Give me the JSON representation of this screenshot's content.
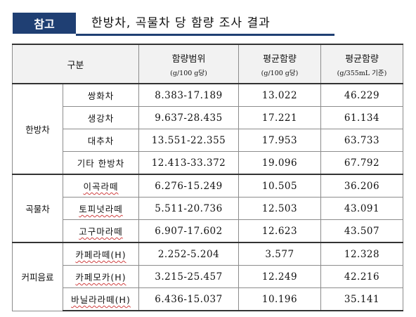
{
  "header": {
    "badge": "참고",
    "title": "한방차, 곡물차 당 함량 조사 결과"
  },
  "table": {
    "columns": [
      {
        "label": "구분",
        "unit": ""
      },
      {
        "label": "함량범위",
        "unit": "(g/100 g당)"
      },
      {
        "label": "평균함량",
        "unit": "(g/100 g당)"
      },
      {
        "label": "평균함량",
        "unit": "(g/355mL 기준)"
      }
    ],
    "groups": [
      {
        "name": "한방차",
        "rows": [
          {
            "item": "쌍화차",
            "range": "8.383-17.189",
            "avg100": "13.022",
            "avg355": "46.229"
          },
          {
            "item": "생강차",
            "range": "9.637-28.435",
            "avg100": "17.221",
            "avg355": "61.134"
          },
          {
            "item": "대추차",
            "range": "13.551-22.355",
            "avg100": "17.953",
            "avg355": "63.733"
          },
          {
            "item": "기타 한방차",
            "range": "12.413-33.372",
            "avg100": "19.096",
            "avg355": "67.792"
          }
        ]
      },
      {
        "name": "곡물차",
        "rows": [
          {
            "item": "이곡라떼",
            "range": "6.276-15.249",
            "avg100": "10.505",
            "avg355": "36.206"
          },
          {
            "item": "토피넛라떼",
            "range": "5.511-20.736",
            "avg100": "12.503",
            "avg355": "43.091"
          },
          {
            "item": "고구마라떼",
            "range": "6.907-17.602",
            "avg100": "12.623",
            "avg355": "43.507"
          }
        ]
      },
      {
        "name": "커피음료",
        "rows": [
          {
            "item": "카페라떼(H)",
            "range": "2.252-5.204",
            "avg100": "3.577",
            "avg355": "12.328"
          },
          {
            "item": "카페모카(H)",
            "range": "3.215-25.457",
            "avg100": "12.249",
            "avg355": "42.216"
          },
          {
            "item": "바닐라라떼(H)",
            "range": "6.436-15.037",
            "avg100": "10.196",
            "avg355": "35.141"
          }
        ]
      }
    ]
  }
}
